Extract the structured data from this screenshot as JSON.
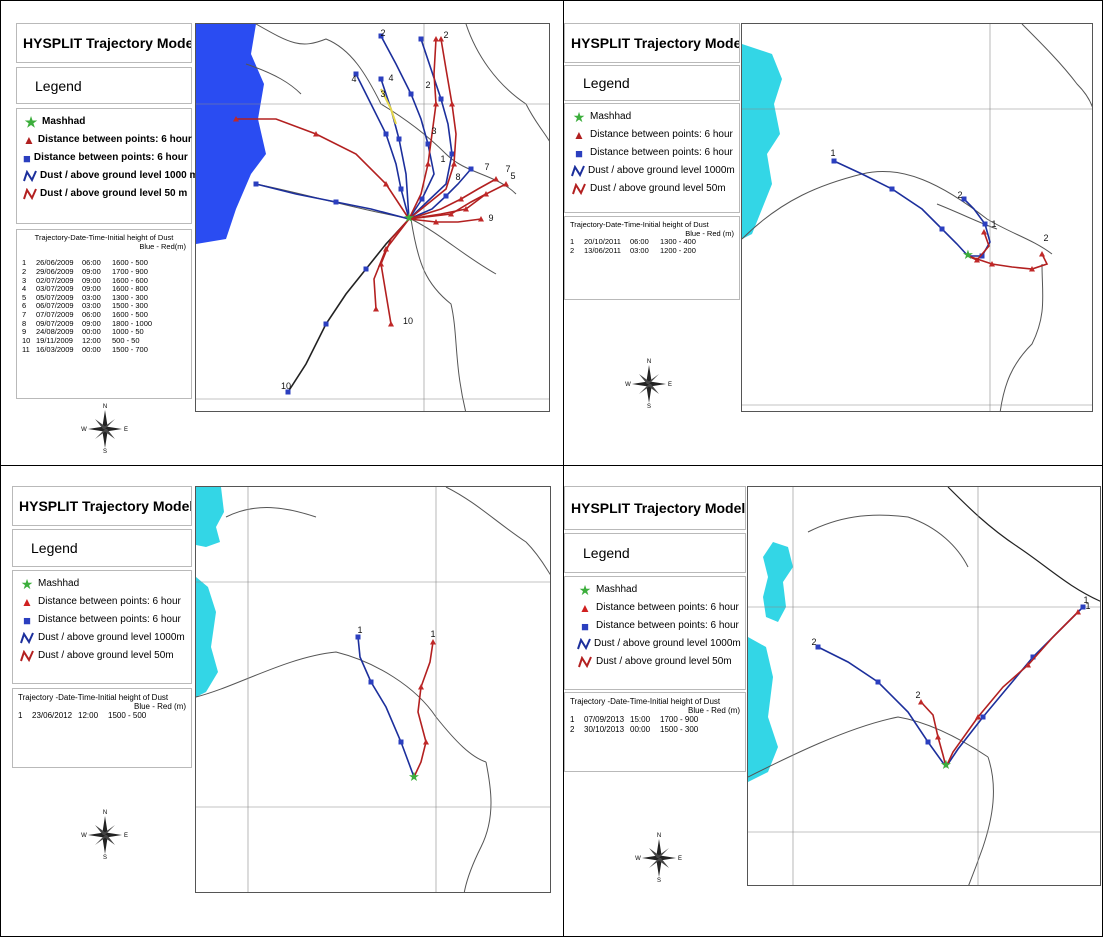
{
  "panels": [
    {
      "title": "HYSPLIT Trajectory Model",
      "legend_label": "Legend",
      "legend_items": [
        {
          "icon": "green-star-icon",
          "label": "Mashhad"
        },
        {
          "icon": "red-triangle-icon",
          "label": "Distance between points: 6 hour"
        },
        {
          "icon": "blue-square-icon",
          "label": "Distance between points: 6 hour"
        },
        {
          "icon": "blue-line-icon",
          "label": "Dust / above ground level 1000 m"
        },
        {
          "icon": "red-line-icon",
          "label": "Dust / above ground level 50 m"
        }
      ],
      "trajectory_header": "Trajectory-Date-Time-Initial height of Dust",
      "trajectory_subheader": "Blue - Red(m)",
      "rows": [
        {
          "id": "1",
          "date": "26/06/2009",
          "time": "06:00",
          "height": "1600 - 500"
        },
        {
          "id": "2",
          "date": "29/06/2009",
          "time": "09:00",
          "height": "1700 - 900"
        },
        {
          "id": "3",
          "date": "02/07/2009",
          "time": "09:00",
          "height": "1600 - 600"
        },
        {
          "id": "4",
          "date": "03/07/2009",
          "time": "09:00",
          "height": "1600 - 800"
        },
        {
          "id": "5",
          "date": "05/07/2009",
          "time": "03:00",
          "height": "1300 - 300"
        },
        {
          "id": "6",
          "date": "06/07/2009",
          "time": "03:00",
          "height": "1500 - 300"
        },
        {
          "id": "7",
          "date": "07/07/2009",
          "time": "06:00",
          "height": "1600 - 500"
        },
        {
          "id": "8",
          "date": "09/07/2009",
          "time": "09:00",
          "height": "1800 - 1000"
        },
        {
          "id": "9",
          "date": "24/08/2009",
          "time": "00:00",
          "height": "1000 - 50"
        },
        {
          "id": "10",
          "date": "19/11/2009",
          "time": "12:00",
          "height": "500 - 50"
        },
        {
          "id": "11",
          "date": "16/03/2009",
          "time": "00:00",
          "height": "1500 - 700"
        }
      ],
      "compass": {
        "n": "N",
        "s": "S",
        "e": "E",
        "w": "W"
      },
      "map_labels": [
        "1",
        "2",
        "2",
        "2",
        "3",
        "3",
        "4",
        "4",
        "5",
        "7",
        "7",
        "8",
        "9",
        "10",
        "10"
      ]
    },
    {
      "title": "HYSPLIT Trajectory Model",
      "legend_label": "Legend",
      "legend_items": [
        {
          "icon": "green-star-icon",
          "label": "Mashhad"
        },
        {
          "icon": "red-triangle-icon",
          "label": "Distance between points: 6 hour"
        },
        {
          "icon": "blue-square-icon",
          "label": "Distance between points: 6 hour"
        },
        {
          "icon": "blue-line-icon",
          "label": "Dust / above ground level 1000m"
        },
        {
          "icon": "red-line-icon",
          "label": "Dust / above ground level 50m"
        }
      ],
      "trajectory_header": "Trajectory-Date-Time-Initial height of Dust",
      "trajectory_subheader": "Blue - Red (m)",
      "rows": [
        {
          "id": "1",
          "date": "20/10/2011",
          "time": "06:00",
          "height": "1300 - 400"
        },
        {
          "id": "2",
          "date": "13/06/2011",
          "time": "03:00",
          "height": "1200 - 200"
        }
      ],
      "compass": {
        "n": "N",
        "s": "S",
        "e": "E",
        "w": "W"
      },
      "map_labels": [
        "1",
        "2",
        "1",
        "2"
      ]
    },
    {
      "title": "HYSPLIT Trajectory Model",
      "legend_label": "Legend",
      "legend_items": [
        {
          "icon": "green-star-icon",
          "label": "Mashhad"
        },
        {
          "icon": "red-triangle-icon",
          "label": "Distance between points: 6 hour"
        },
        {
          "icon": "blue-square-icon",
          "label": "Distance between points: 6 hour"
        },
        {
          "icon": "blue-line-icon",
          "label": "Dust / above ground level 1000m"
        },
        {
          "icon": "red-line-icon",
          "label": "Dust / above ground level 50m"
        }
      ],
      "trajectory_header": "Trajectory -Date-Time-Initial height of Dust",
      "trajectory_subheader": "Blue - Red (m)",
      "rows": [
        {
          "id": "1",
          "date": "23/06/2012",
          "time": "12:00",
          "height": "1500 - 500"
        }
      ],
      "compass": {
        "n": "N",
        "s": "S",
        "e": "E",
        "w": "W"
      },
      "map_labels": [
        "1",
        "1"
      ]
    },
    {
      "title": "HYSPLIT Trajectory Model",
      "legend_label": "Legend",
      "legend_items": [
        {
          "icon": "green-star-icon",
          "label": "Mashhad"
        },
        {
          "icon": "red-triangle-icon",
          "label": "Distance between points: 6 hour"
        },
        {
          "icon": "blue-square-icon",
          "label": "Distance between points: 6 hour"
        },
        {
          "icon": "blue-line-icon",
          "label": "Dust / above ground level 1000m"
        },
        {
          "icon": "red-line-icon",
          "label": "Dust / above ground level 50m"
        }
      ],
      "trajectory_header": "Trajectory -Date-Time-Initial height of Dust",
      "trajectory_subheader": "Blue - Red (m)",
      "rows": [
        {
          "id": "1",
          "date": "07/09/2013",
          "time": "15:00",
          "height": "1700 - 900"
        },
        {
          "id": "2",
          "date": "30/10/2013",
          "time": "00:00",
          "height": "1500 - 300"
        }
      ],
      "compass": {
        "n": "N",
        "s": "S",
        "e": "E",
        "w": "W"
      },
      "map_labels": [
        "1",
        "2",
        "1",
        "2"
      ]
    }
  ],
  "colors": {
    "water": "#2a4cf2",
    "water_cyan": "#33d6e6",
    "blue_traj": "#1c2f9c",
    "red_traj": "#b32020",
    "marker_blue": "#2b3fbf",
    "marker_red": "#c02828",
    "star": "#3cae3c",
    "yellow": "#e6d84a",
    "black_traj": "#222"
  }
}
